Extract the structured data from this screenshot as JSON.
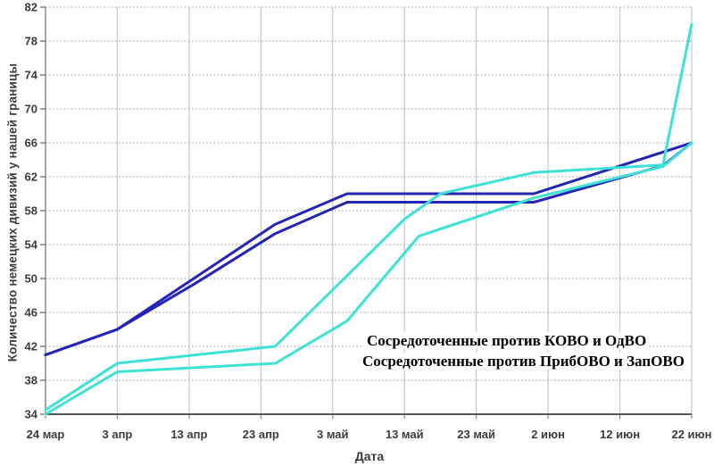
{
  "chart_data": {
    "type": "line",
    "title": "",
    "xlabel": "Дата",
    "ylabel": "Количество немецких дивизий у нашей границы",
    "x_unit": "days from first tick (24 мар = 0)",
    "xlim_days": [
      0,
      90
    ],
    "ylim": [
      34,
      82
    ],
    "y_ticks": [
      34,
      38,
      42,
      46,
      50,
      54,
      58,
      62,
      66,
      70,
      74,
      78,
      82
    ],
    "x_ticks": {
      "days": [
        0,
        10,
        20,
        30,
        40,
        50,
        60,
        70,
        80,
        90
      ],
      "labels": [
        "24 мар",
        "3 апр",
        "13 апр",
        "23 апр",
        "3 май",
        "13 май",
        "23 май",
        "2 июн",
        "12 июн",
        "22 июн"
      ]
    },
    "grid": {
      "horizontal": "dotted",
      "vertical": "solid"
    },
    "legend_position": "inside lower-right",
    "legend": [
      {
        "label": "Сосредоточенные против КОВО и ОдВО",
        "color": "#3EE1D6"
      },
      {
        "label": "Сосредоточенные против ПрибОВО и ЗапОВО",
        "color": "#2424B6"
      }
    ],
    "series": [
      {
        "name": "PribOVO-ZapOVO-upper",
        "color": "#2424B6",
        "points": [
          [
            0,
            41
          ],
          [
            10,
            44
          ],
          [
            21,
            50.2
          ],
          [
            32,
            56.4
          ],
          [
            42,
            60
          ],
          [
            68,
            60
          ],
          [
            90,
            66
          ]
        ]
      },
      {
        "name": "PribOVO-ZapOVO-lower",
        "color": "#2424B6",
        "points": [
          [
            0,
            41
          ],
          [
            10,
            44
          ],
          [
            21,
            49.5
          ],
          [
            32,
            55.3
          ],
          [
            42,
            59
          ],
          [
            68,
            59
          ],
          [
            86,
            63.3
          ],
          [
            90,
            66
          ]
        ]
      },
      {
        "name": "KOVO-OdVO-upper",
        "color": "#3EE1D6",
        "points": [
          [
            0,
            34.5
          ],
          [
            10,
            40
          ],
          [
            32,
            42
          ],
          [
            50,
            57
          ],
          [
            55,
            60
          ],
          [
            68,
            62.5
          ],
          [
            86,
            63.4
          ],
          [
            90,
            80
          ]
        ]
      },
      {
        "name": "KOVO-OdVO-lower",
        "color": "#3EE1D6",
        "points": [
          [
            0,
            34
          ],
          [
            10,
            39
          ],
          [
            32,
            40
          ],
          [
            42,
            45
          ],
          [
            52,
            55
          ],
          [
            68,
            59.5
          ],
          [
            86,
            63.2
          ],
          [
            90,
            66
          ]
        ]
      }
    ]
  },
  "style_colors": {
    "h_gridline": "#949494",
    "v_gridline": "#C9C9C9",
    "axis": "#555555",
    "tick_label": "#3c3c3c",
    "background": "#ffffff"
  }
}
